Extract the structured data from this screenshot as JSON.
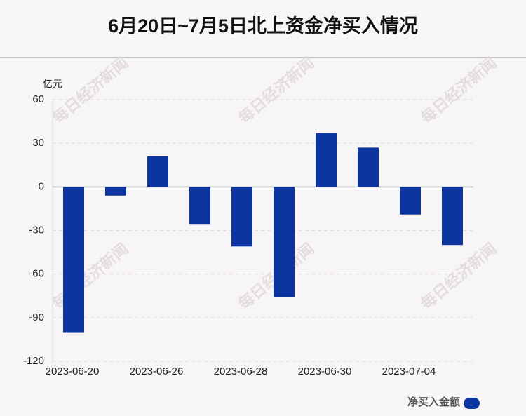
{
  "chart_data": {
    "type": "bar",
    "title": "6月20日~7月5日北上资金净买入情况",
    "y_unit": "亿元",
    "watermark": "每日经济新闻",
    "categories": [
      "2023-06-20",
      null,
      "2023-06-26",
      null,
      "2023-06-28",
      null,
      "2023-06-30",
      null,
      "2023-07-04",
      null
    ],
    "series": [
      {
        "name": "净买入金额",
        "color": "#0c35a1",
        "values": [
          -100,
          -6,
          21,
          -26,
          -41,
          -76,
          37,
          27,
          -19,
          -40
        ]
      }
    ],
    "ylim": [
      -120,
      60
    ],
    "yticks": [
      -120,
      -90,
      -60,
      -30,
      0,
      30,
      60
    ],
    "grid": true
  }
}
